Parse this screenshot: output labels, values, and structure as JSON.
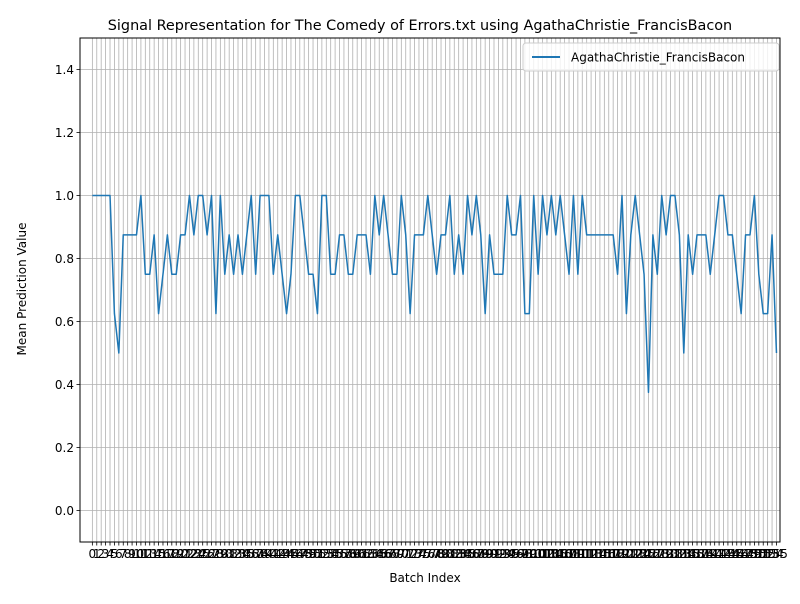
{
  "chart_data": {
    "type": "line",
    "title": "Signal Representation for The Comedy of Errors.txt using AgathaChristie_FrancisBacon",
    "xlabel": "Batch Index",
    "ylabel": "Mean Prediction Value",
    "ylim": [
      -0.1,
      1.5
    ],
    "xlim": [
      -2.8,
      155.8
    ],
    "yticks": [
      0.0,
      0.2,
      0.4,
      0.6,
      0.8,
      1.0,
      1.2,
      1.4
    ],
    "ytick_labels": [
      "0.0",
      "0.2",
      "0.4",
      "0.6",
      "0.8",
      "1.0",
      "1.2",
      "1.4"
    ],
    "grid": true,
    "legend_position": "top-right",
    "series": [
      {
        "name": "AgathaChristie_FrancisBacon",
        "color": "#1f77b4",
        "values": [
          1.0,
          1.0,
          1.0,
          1.0,
          1.0,
          0.625,
          0.5,
          0.875,
          0.875,
          0.875,
          0.875,
          1.0,
          0.75,
          0.75,
          0.875,
          0.625,
          0.75,
          0.875,
          0.75,
          0.75,
          0.875,
          0.875,
          1.0,
          0.875,
          1.0,
          1.0,
          0.875,
          1.0,
          0.625,
          1.0,
          0.75,
          0.875,
          0.75,
          0.875,
          0.75,
          0.875,
          1.0,
          0.75,
          1.0,
          1.0,
          1.0,
          0.75,
          0.875,
          0.75,
          0.625,
          0.75,
          1.0,
          1.0,
          0.875,
          0.75,
          0.75,
          0.625,
          1.0,
          1.0,
          0.75,
          0.75,
          0.875,
          0.875,
          0.75,
          0.75,
          0.875,
          0.875,
          0.875,
          0.75,
          1.0,
          0.875,
          1.0,
          0.875,
          0.75,
          0.75,
          1.0,
          0.875,
          0.625,
          0.875,
          0.875,
          0.875,
          1.0,
          0.875,
          0.75,
          0.875,
          0.875,
          1.0,
          0.75,
          0.875,
          0.75,
          1.0,
          0.875,
          1.0,
          0.875,
          0.625,
          0.875,
          0.75,
          0.75,
          0.75,
          1.0,
          0.875,
          0.875,
          1.0,
          0.625,
          0.625,
          1.0,
          0.75,
          1.0,
          0.875,
          1.0,
          0.875,
          1.0,
          0.875,
          0.75,
          1.0,
          0.75,
          1.0,
          0.875,
          0.875,
          0.875,
          0.875,
          0.875,
          0.875,
          0.875,
          0.75,
          1.0,
          0.625,
          0.875,
          1.0,
          0.875,
          0.75,
          0.375,
          0.875,
          0.75,
          1.0,
          0.875,
          1.0,
          1.0,
          0.875,
          0.5,
          0.875,
          0.75,
          0.875,
          0.875,
          0.875,
          0.75,
          0.875,
          1.0,
          1.0,
          0.875,
          0.875,
          0.75,
          0.625,
          0.875,
          0.875,
          1.0,
          0.75,
          0.625,
          0.625,
          0.875,
          0.5
        ]
      }
    ]
  }
}
